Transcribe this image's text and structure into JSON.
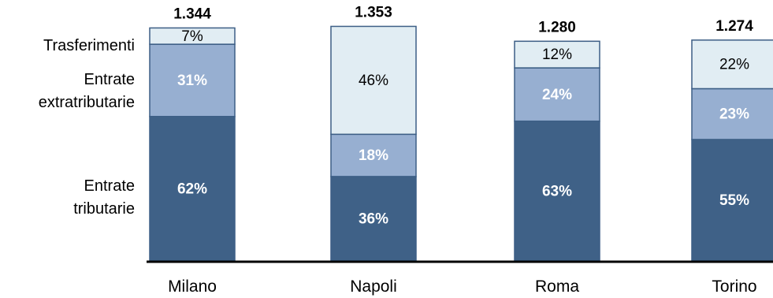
{
  "chart_data": {
    "type": "bar",
    "stacked": true,
    "normalized": true,
    "categories": [
      "Milano",
      "Napoli",
      "Roma",
      "Torino"
    ],
    "totals": [
      "1.344",
      "1.353",
      "1.280",
      "1.274"
    ],
    "total_values": [
      1344,
      1353,
      1280,
      1274
    ],
    "series": [
      {
        "name": "Entrate tributarie",
        "values": [
          62,
          36,
          63,
          55
        ],
        "labels": [
          "62%",
          "36%",
          "63%",
          "55%"
        ],
        "color": "#3f6187",
        "label_color": "#ffffff",
        "label_bold": true
      },
      {
        "name": "Entrate extratributarie",
        "values": [
          31,
          18,
          24,
          23
        ],
        "labels": [
          "31%",
          "18%",
          "24%",
          "23%"
        ],
        "color": "#97afd1",
        "label_color": "#ffffff",
        "label_bold": true
      },
      {
        "name": "Trasferimenti",
        "values": [
          7,
          46,
          12,
          22
        ],
        "labels": [
          "7%",
          "46%",
          "12%",
          "22%"
        ],
        "color": "#e1edf3",
        "label_color": "#000000",
        "label_bold": false
      }
    ],
    "legend": [
      {
        "lines": [
          "Trasferimenti"
        ]
      },
      {
        "lines": [
          "Entrate",
          "extratributarie"
        ]
      },
      {
        "lines": [
          "Entrate",
          "tributarie"
        ]
      }
    ],
    "grid": false,
    "legend_placement": "left"
  }
}
